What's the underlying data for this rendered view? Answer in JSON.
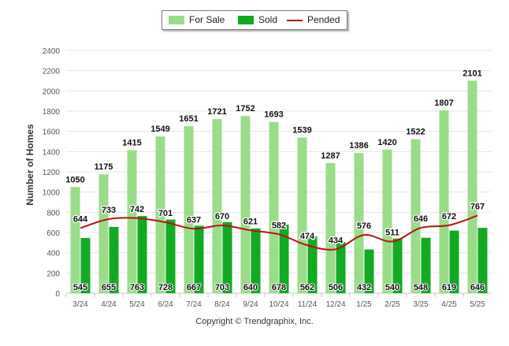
{
  "chart_data": {
    "type": "bar",
    "categories": [
      "3/24",
      "4/24",
      "5/24",
      "6/24",
      "7/24",
      "8/24",
      "9/24",
      "10/24",
      "11/24",
      "12/24",
      "1/25",
      "2/25",
      "3/25",
      "4/25",
      "5/25"
    ],
    "series": [
      {
        "name": "For Sale",
        "kind": "bar",
        "color": "#99dd88",
        "values": [
          1050,
          1175,
          1415,
          1549,
          1651,
          1721,
          1752,
          1693,
          1539,
          1287,
          1386,
          1420,
          1522,
          1807,
          2101
        ]
      },
      {
        "name": "Sold",
        "kind": "bar",
        "color": "#11aa22",
        "values": [
          545,
          655,
          763,
          728,
          667,
          703,
          640,
          678,
          562,
          506,
          432,
          540,
          548,
          619,
          646
        ]
      },
      {
        "name": "Pended",
        "kind": "line",
        "color": "#bb1111",
        "values": [
          644,
          733,
          742,
          701,
          637,
          670,
          621,
          582,
          474,
          434,
          576,
          511,
          646,
          672,
          767
        ]
      }
    ],
    "ylabel": "Number of Homes",
    "ylim": [
      0,
      2400
    ],
    "yticks": [
      0,
      200,
      400,
      600,
      800,
      1000,
      1200,
      1400,
      1600,
      1800,
      2000,
      2200,
      2400
    ],
    "grid": true,
    "legend_position": "top-center"
  },
  "footer": {
    "copyright": "Copyright © Trendgraphix, Inc."
  }
}
